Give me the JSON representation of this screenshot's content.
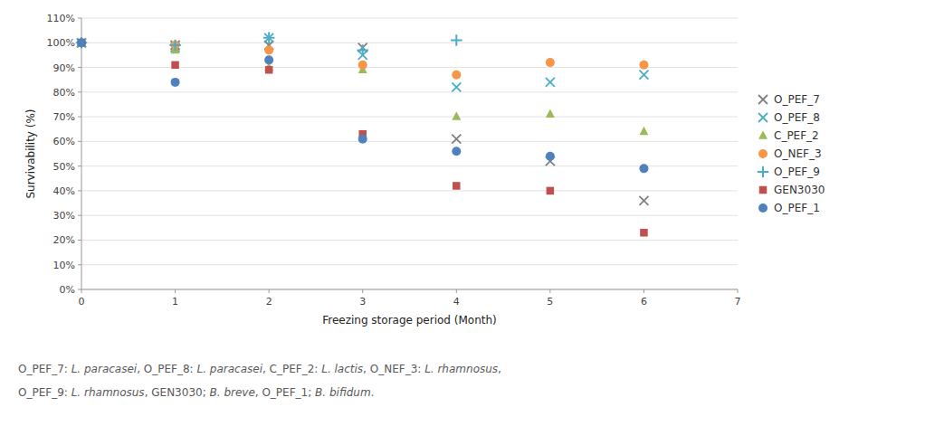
{
  "chart_data": {
    "type": "scatter",
    "xlabel": "Freezing storage period (Month)",
    "ylabel": "Survivability (%)",
    "xlim": [
      0,
      7
    ],
    "ylim": [
      0.0,
      1.1
    ],
    "xticks": [
      0,
      1,
      2,
      3,
      4,
      5,
      6,
      7
    ],
    "yticks": [
      {
        "value": 0.0,
        "label": "0%"
      },
      {
        "value": 0.1,
        "label": "10%"
      },
      {
        "value": 0.2,
        "label": "20%"
      },
      {
        "value": 0.3,
        "label": "30%"
      },
      {
        "value": 0.4,
        "label": "40%"
      },
      {
        "value": 0.5,
        "label": "50%"
      },
      {
        "value": 0.6,
        "label": "60%"
      },
      {
        "value": 0.7,
        "label": "70%"
      },
      {
        "value": 0.8,
        "label": "80%"
      },
      {
        "value": 0.9,
        "label": "90%"
      },
      {
        "value": 1.0,
        "label": "100%"
      },
      {
        "value": 1.1,
        "label": "110%"
      }
    ],
    "grid": "y",
    "legend": "right",
    "series": [
      {
        "name": "O_PEF_7",
        "color": "#808080",
        "marker": "x",
        "x": [
          0,
          1,
          2,
          3,
          4,
          5,
          6
        ],
        "values": [
          1.0,
          0.99,
          0.99,
          0.98,
          0.61,
          0.52,
          0.36
        ]
      },
      {
        "name": "O_PEF_8",
        "color": "#4bacc6",
        "marker": "x",
        "x": [
          0,
          1,
          2,
          3,
          4,
          5,
          6
        ],
        "values": [
          1.0,
          0.98,
          1.02,
          0.95,
          0.82,
          0.84,
          0.87
        ]
      },
      {
        "name": "C_PEF_2",
        "color": "#9bbb59",
        "marker": "triangle",
        "x": [
          0,
          1,
          2,
          3,
          4,
          5,
          6
        ],
        "values": [
          1.0,
          0.97,
          0.9,
          0.89,
          0.7,
          0.71,
          0.64
        ]
      },
      {
        "name": "O_NEF_3",
        "color": "#f79646",
        "marker": "circle",
        "x": [
          0,
          1,
          2,
          3,
          4,
          5,
          6
        ],
        "values": [
          1.0,
          0.99,
          0.97,
          0.91,
          0.87,
          0.92,
          0.91
        ]
      },
      {
        "name": "O_PEF_9",
        "color": "#4bacc6",
        "marker": "plus",
        "x": [
          0,
          1,
          2,
          3,
          4
        ],
        "values": [
          1.0,
          0.99,
          1.02,
          0.97,
          1.01
        ]
      },
      {
        "name": "GEN3030",
        "color": "#c0504d",
        "marker": "square",
        "x": [
          0,
          1,
          2,
          3,
          4,
          5,
          6
        ],
        "values": [
          1.0,
          0.91,
          0.89,
          0.63,
          0.42,
          0.4,
          0.23
        ]
      },
      {
        "name": "O_PEF_1",
        "color": "#4f81bd",
        "marker": "circle",
        "x": [
          0,
          1,
          2,
          3,
          4,
          5,
          6
        ],
        "values": [
          1.0,
          0.84,
          0.93,
          0.61,
          0.56,
          0.54,
          0.49
        ]
      }
    ],
    "annotations": [
      [
        {
          "text": "O_PEF_7: ",
          "italic": false
        },
        {
          "text": "L. paracasei",
          "italic": true
        },
        {
          "text": ", O_PEF_8: ",
          "italic": false
        },
        {
          "text": "L. paracasei",
          "italic": true
        },
        {
          "text": ", C_PEF_2: ",
          "italic": false
        },
        {
          "text": "L. lactis",
          "italic": true
        },
        {
          "text": ", O_NEF_3: ",
          "italic": false
        },
        {
          "text": "L. rhamnosus",
          "italic": true
        },
        {
          "text": ",",
          "italic": false
        }
      ],
      [
        {
          "text": "O_PEF_9: ",
          "italic": false
        },
        {
          "text": "L. rhamnosus",
          "italic": true
        },
        {
          "text": ", GEN3030; ",
          "italic": false
        },
        {
          "text": "B. breve",
          "italic": true
        },
        {
          "text": ", O_PEF_1; ",
          "italic": false
        },
        {
          "text": "B. bifidum",
          "italic": true
        },
        {
          "text": ".",
          "italic": false
        }
      ]
    ]
  }
}
